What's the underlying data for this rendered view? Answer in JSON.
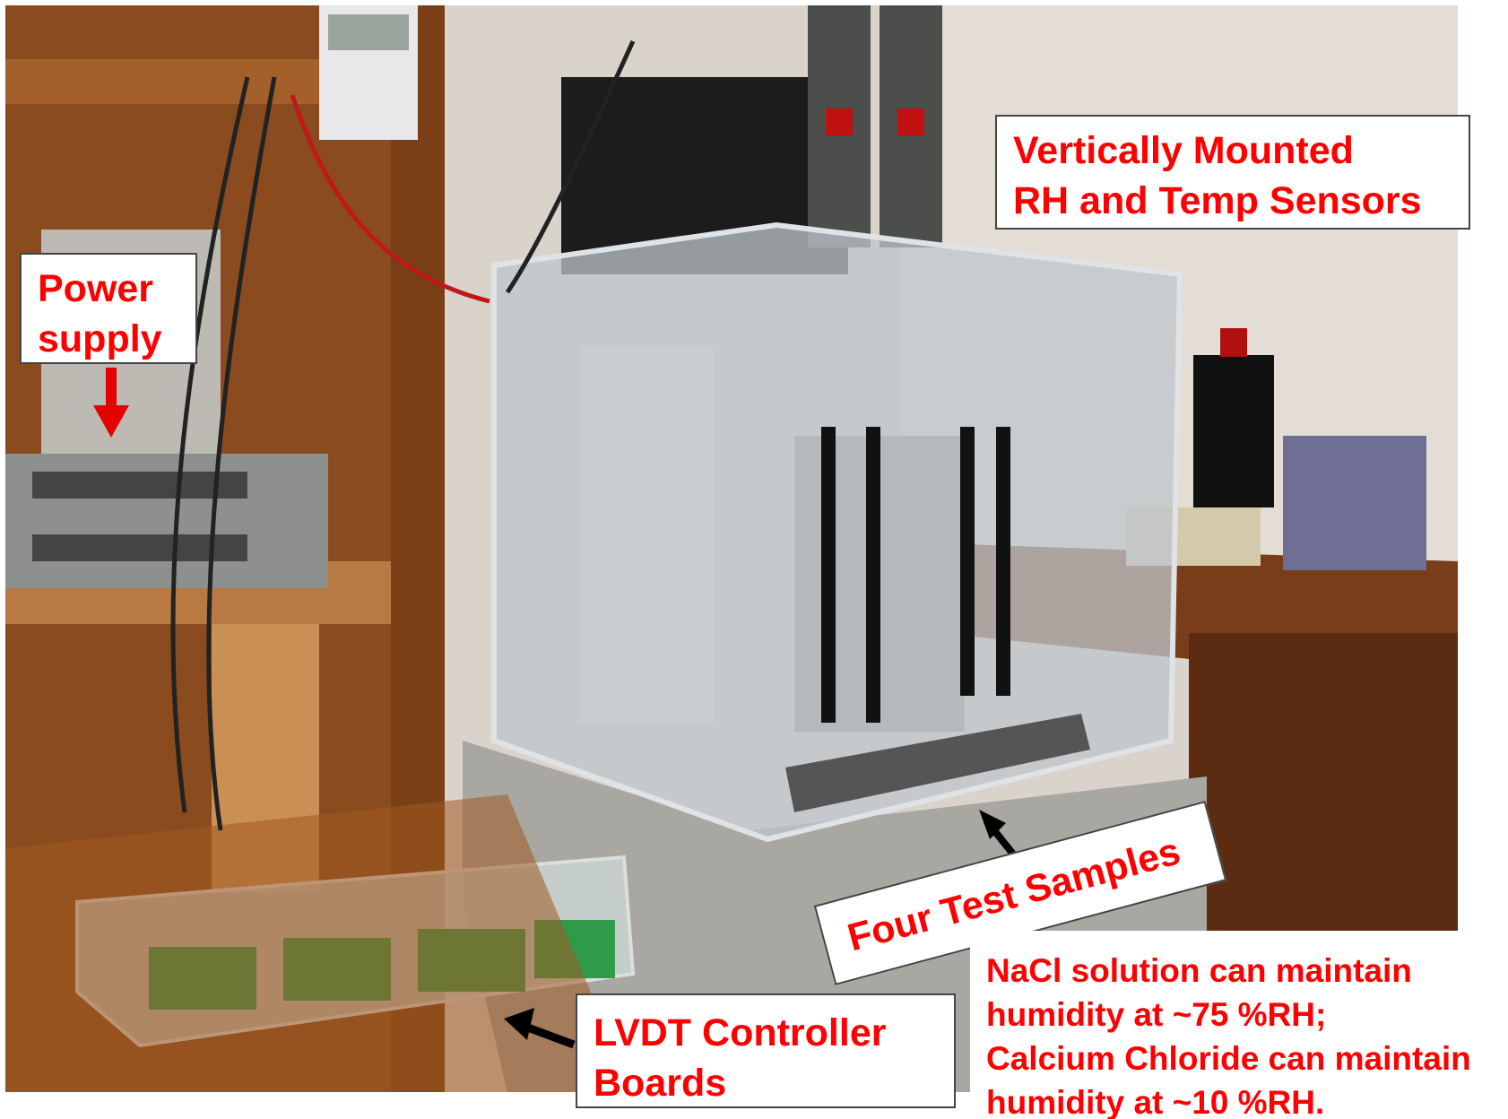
{
  "labels": {
    "power_supply": [
      "Power",
      "supply"
    ],
    "sensors": [
      "Vertically Mounted",
      "RH and Temp Sensors"
    ],
    "samples": "Four Test Samples",
    "lvdt": [
      "LVDT Controller",
      "Boards"
    ]
  },
  "note": [
    "NaCl solution can maintain",
    "humidity at ~75 %RH;",
    "Calcium Chloride can maintain",
    "humidity at ~10 %RH."
  ],
  "colors": {
    "label_text": "#ff0000",
    "arrow_red": "#e50000",
    "arrow_black": "#000000"
  }
}
